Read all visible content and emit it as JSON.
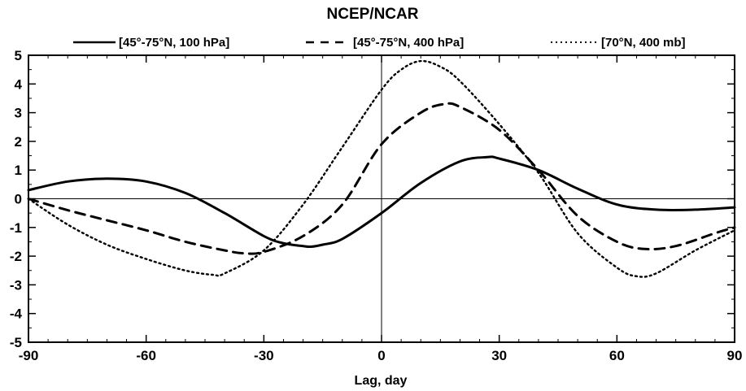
{
  "chart_data": {
    "type": "line",
    "title": "NCEP/NCAR",
    "xlabel": "Lag, day",
    "ylabel": "",
    "xlim": [
      -90,
      90
    ],
    "ylim": [
      -5,
      5
    ],
    "xticks": [
      -90,
      -60,
      -30,
      0,
      30,
      60,
      90
    ],
    "yticks": [
      5,
      4,
      3,
      2,
      1,
      0,
      -1,
      -2,
      -3,
      -4,
      -5
    ],
    "x_tick_labels": [
      "-90",
      "-60",
      "-30",
      "0",
      "30",
      "60",
      "90"
    ],
    "y_tick_labels": [
      "5",
      "4",
      "3",
      "2",
      "1",
      "0",
      "-1",
      "-2",
      "-3",
      "-4",
      "-5"
    ],
    "grid": false,
    "reference_lines": {
      "x": 0,
      "y": 0
    },
    "legend_position": "top",
    "series": [
      {
        "name": "[45°-75°N, 100 hPa]",
        "style": "solid",
        "color": "#000000",
        "x": [
          -90,
          -80,
          -70,
          -60,
          -50,
          -40,
          -30,
          -25,
          -20,
          -18,
          -15,
          -10,
          0,
          10,
          20,
          27,
          30,
          40,
          50,
          60,
          70,
          80,
          90
        ],
        "y": [
          0.3,
          0.6,
          0.7,
          0.6,
          0.2,
          -0.5,
          -1.3,
          -1.55,
          -1.65,
          -1.67,
          -1.6,
          -1.4,
          -0.5,
          0.55,
          1.3,
          1.45,
          1.4,
          1.0,
          0.35,
          -0.2,
          -0.38,
          -0.38,
          -0.3
        ]
      },
      {
        "name": "[45°-75°N, 400 hPa]",
        "style": "dashed",
        "color": "#000000",
        "x": [
          -90,
          -80,
          -70,
          -60,
          -50,
          -40,
          -35,
          -30,
          -20,
          -10,
          0,
          10,
          16,
          20,
          30,
          40,
          50,
          60,
          67,
          75,
          85,
          90
        ],
        "y": [
          0.0,
          -0.4,
          -0.75,
          -1.1,
          -1.5,
          -1.8,
          -1.9,
          -1.85,
          -1.3,
          -0.2,
          1.9,
          3.0,
          3.3,
          3.2,
          2.4,
          1.0,
          -0.6,
          -1.5,
          -1.75,
          -1.65,
          -1.2,
          -1.0
        ]
      },
      {
        "name": "[70°N, 400 mb]",
        "style": "dotted",
        "color": "#000000",
        "x": [
          -90,
          -80,
          -70,
          -60,
          -50,
          -43,
          -40,
          -30,
          -20,
          -10,
          0,
          5,
          10,
          15,
          20,
          30,
          40,
          50,
          60,
          65,
          70,
          80,
          90
        ],
        "y": [
          0.0,
          -0.9,
          -1.6,
          -2.1,
          -2.5,
          -2.65,
          -2.6,
          -1.8,
          -0.2,
          1.8,
          3.8,
          4.5,
          4.8,
          4.6,
          4.1,
          2.6,
          0.9,
          -1.2,
          -2.4,
          -2.7,
          -2.6,
          -1.8,
          -1.1
        ]
      }
    ]
  }
}
